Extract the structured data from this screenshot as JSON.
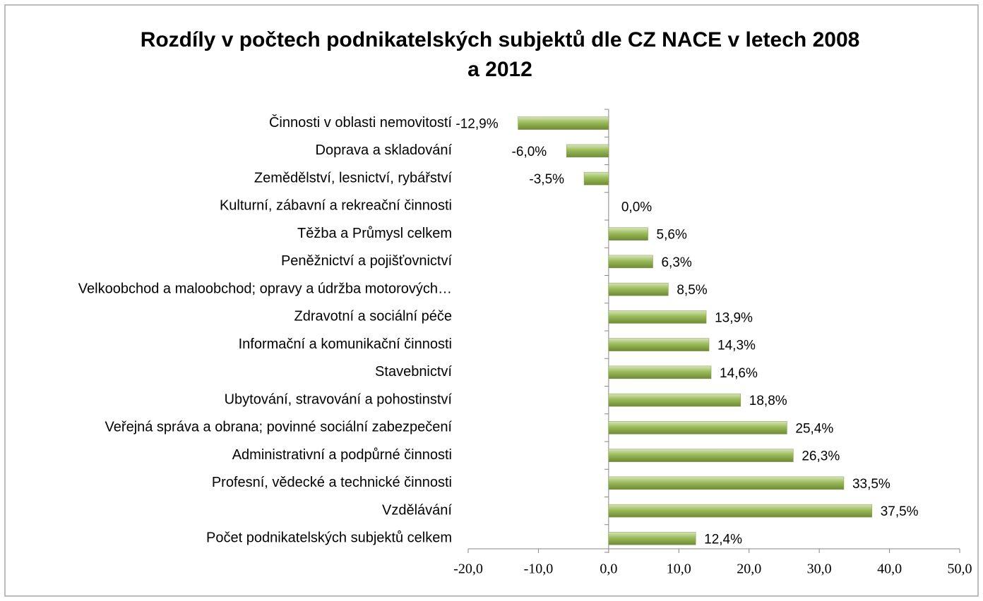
{
  "chart_data": {
    "type": "bar",
    "orientation": "horizontal",
    "title": "Rozdíly v počtech podnikatelských subjektů dle CZ NACE v letech 2008 a 2012",
    "categories": [
      "Činnosti v oblasti nemovitostí",
      "Doprava a skladování",
      "Zemědělství, lesnictví, rybářství",
      "Kulturní, zábavní a rekreační činnosti",
      "Těžba a Průmysl celkem",
      "Peněžnictví a pojišťovnictví",
      "Velkoobchod a maloobchod; opravy a údržba motorových…",
      "Zdravotní a sociální péče",
      "Informační a komunikační činnosti",
      "Stavebnictví",
      "Ubytování, stravování a pohostinství",
      "Veřejná správa a obrana; povinné sociální zabezpečení",
      "Administrativní a podpůrné činnosti",
      "Profesní, vědecké a technické činnosti",
      "Vzdělávání",
      "Počet podnikatelských subjektů celkem"
    ],
    "values": [
      -12.9,
      -6.0,
      -3.5,
      0.0,
      5.6,
      6.3,
      8.5,
      13.9,
      14.3,
      14.6,
      18.8,
      25.4,
      26.3,
      33.5,
      37.5,
      12.4
    ],
    "value_labels": [
      "-12,9%",
      "-6,0%",
      "-3,5%",
      "0,0%",
      "5,6%",
      "6,3%",
      "8,5%",
      "13,9%",
      "14,3%",
      "14,6%",
      "18,8%",
      "25,4%",
      "26,3%",
      "33,5%",
      "37,5%",
      "12,4%"
    ],
    "color": "#9bbb59",
    "xlim": [
      -20,
      50
    ],
    "xticks": [
      {
        "value": -20,
        "label": "-20,0"
      },
      {
        "value": -10,
        "label": "-10,0"
      },
      {
        "value": 0,
        "label": "0,0"
      },
      {
        "value": 10,
        "label": "10,0"
      },
      {
        "value": 20,
        "label": "20,0"
      },
      {
        "value": 30,
        "label": "30,0"
      },
      {
        "value": 40,
        "label": "40,0"
      },
      {
        "value": 50,
        "label": "50,0"
      }
    ],
    "grid": false
  }
}
